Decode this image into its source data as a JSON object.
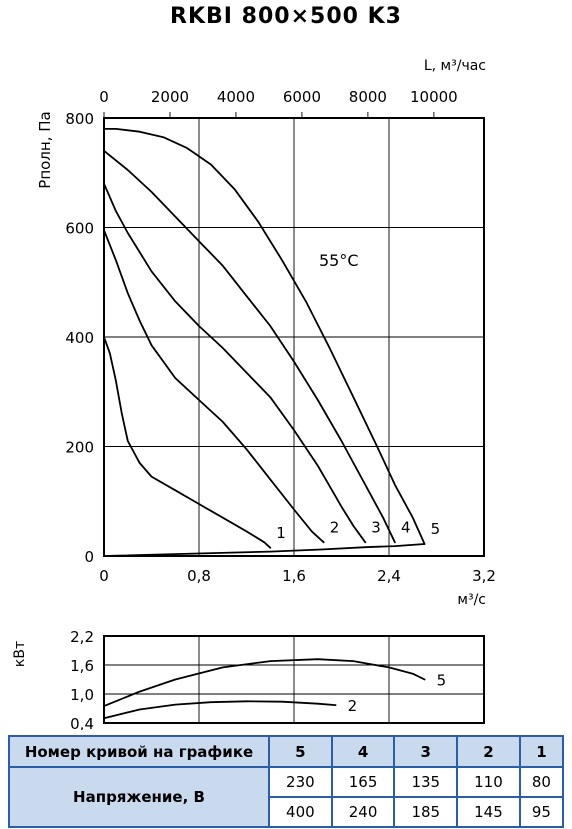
{
  "title": "RKBI 800×500 K3",
  "chart_data": [
    {
      "type": "line",
      "title": "",
      "xlabel": "м³/с",
      "ylabel": "Pполн, Па",
      "x2label": "L, м³/час",
      "xlim": [
        0,
        3.2
      ],
      "ylim": [
        0,
        800
      ],
      "x2lim": [
        0,
        11520
      ],
      "xticks": [
        "0",
        "0,8",
        "1,6",
        "2,4",
        "3,2"
      ],
      "yticks": [
        "0",
        "200",
        "400",
        "600",
        "800"
      ],
      "x2ticks": [
        "0",
        "2000",
        "4000",
        "6000",
        "8000",
        "10000"
      ],
      "annotation": "55°C",
      "grid": true,
      "series": [
        {
          "name": "1",
          "x": [
            0,
            0.05,
            0.1,
            0.15,
            0.2,
            0.3,
            0.4,
            0.6,
            0.8,
            1.0,
            1.2,
            1.35,
            1.4
          ],
          "y": [
            400,
            370,
            320,
            260,
            210,
            170,
            145,
            120,
            95,
            70,
            45,
            25,
            15
          ]
        },
        {
          "name": "2",
          "x": [
            0,
            0.1,
            0.2,
            0.3,
            0.4,
            0.6,
            0.8,
            1.0,
            1.2,
            1.4,
            1.6,
            1.75,
            1.85
          ],
          "y": [
            595,
            540,
            480,
            430,
            385,
            325,
            285,
            245,
            195,
            140,
            85,
            45,
            25
          ]
        },
        {
          "name": "3",
          "x": [
            0,
            0.1,
            0.2,
            0.4,
            0.6,
            0.8,
            1.0,
            1.2,
            1.4,
            1.6,
            1.8,
            2.0,
            2.1,
            2.2
          ],
          "y": [
            680,
            630,
            590,
            520,
            465,
            420,
            380,
            335,
            290,
            230,
            165,
            90,
            55,
            25
          ]
        },
        {
          "name": "4",
          "x": [
            0,
            0.2,
            0.4,
            0.6,
            0.8,
            1.0,
            1.2,
            1.4,
            1.6,
            1.8,
            2.0,
            2.2,
            2.35,
            2.45
          ],
          "y": [
            740,
            705,
            665,
            620,
            575,
            530,
            475,
            420,
            355,
            285,
            210,
            130,
            70,
            25
          ]
        },
        {
          "name": "5",
          "x": [
            0,
            0.1,
            0.3,
            0.5,
            0.7,
            0.9,
            1.1,
            1.3,
            1.5,
            1.7,
            1.9,
            2.1,
            2.3,
            2.45,
            2.6,
            2.7
          ],
          "y": [
            780,
            780,
            775,
            765,
            745,
            715,
            670,
            610,
            540,
            465,
            380,
            290,
            200,
            130,
            70,
            22
          ]
        },
        {
          "name": "",
          "x": [
            0,
            1.4,
            1.85,
            2.2,
            2.45,
            2.7
          ],
          "y": [
            0,
            8,
            12,
            16,
            18,
            22
          ]
        }
      ]
    },
    {
      "type": "line",
      "title": "",
      "ylabel": "кВт",
      "xlim": [
        0,
        3.2
      ],
      "ylim": [
        0.4,
        2.2
      ],
      "yticks": [
        "0,4",
        "1,0",
        "1,6",
        "2,2"
      ],
      "grid": true,
      "series": [
        {
          "name": "5",
          "x": [
            0,
            0.3,
            0.6,
            1.0,
            1.4,
            1.8,
            2.1,
            2.4,
            2.6,
            2.7
          ],
          "y": [
            0.75,
            1.05,
            1.3,
            1.55,
            1.68,
            1.72,
            1.68,
            1.55,
            1.42,
            1.3
          ]
        },
        {
          "name": "2",
          "x": [
            0,
            0.3,
            0.6,
            0.9,
            1.2,
            1.5,
            1.8,
            1.95
          ],
          "y": [
            0.5,
            0.68,
            0.78,
            0.83,
            0.85,
            0.84,
            0.8,
            0.77
          ]
        }
      ]
    }
  ],
  "table": {
    "header_label": "Номер кривой на графике",
    "curve_numbers": [
      "5",
      "4",
      "3",
      "2",
      "1"
    ],
    "row_label": "Напряжение, В",
    "voltage_row1": [
      "230",
      "165",
      "135",
      "110",
      "80"
    ],
    "voltage_row2": [
      "400",
      "240",
      "185",
      "145",
      "95"
    ]
  }
}
